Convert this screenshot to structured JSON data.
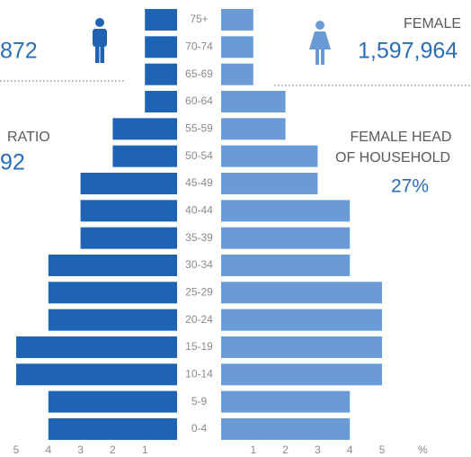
{
  "chart_data": {
    "type": "pyramid",
    "categories": [
      "75+",
      "70-74",
      "65-69",
      "60-64",
      "55-59",
      "50-54",
      "45-49",
      "40-44",
      "35-39",
      "30-34",
      "25-29",
      "20-24",
      "15-19",
      "10-14",
      "5-9",
      "0-4"
    ],
    "series": [
      {
        "color": "#1f64b4",
        "side": "left",
        "values": [
          1,
          1,
          1,
          1,
          2,
          2,
          3,
          3,
          3,
          4,
          4,
          4,
          5,
          5,
          4,
          4
        ]
      },
      {
        "color": "#6a9bd6",
        "side": "right",
        "values": [
          1,
          1,
          1,
          2,
          2,
          3,
          3,
          4,
          4,
          4,
          5,
          5,
          5,
          5,
          4,
          4
        ]
      }
    ],
    "xlim": [
      0,
      5
    ],
    "xticks_left": [
      5,
      4,
      3,
      2,
      1
    ],
    "xticks_right": [
      1,
      2,
      3,
      4,
      5
    ],
    "x_unit": "%",
    "annotations": {
      "male_total": "872",
      "female_label": "FEMALE",
      "female_total": "1,597,964",
      "ratio_label": "RATIO",
      "ratio_value": "92",
      "female_head_label_1": "FEMALE HEAD",
      "female_head_label_2": "OF HOUSEHOLD",
      "female_head_value": "27%"
    }
  }
}
